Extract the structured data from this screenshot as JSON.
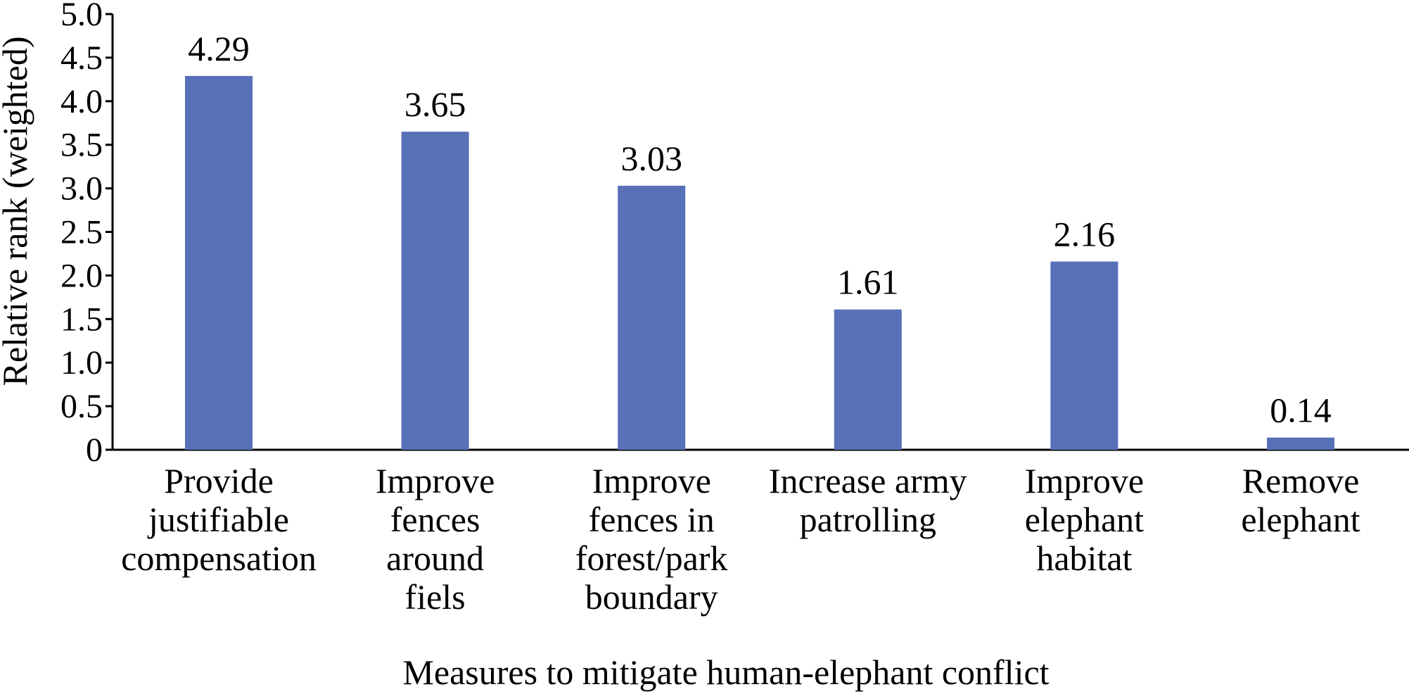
{
  "chart_data": {
    "type": "bar",
    "title": "",
    "xlabel": "Measures to mitigate human-elephant conflict",
    "ylabel": "Relative rank (weighted)",
    "ylim": [
      0,
      5.0
    ],
    "yticks": [
      "0",
      "0.5",
      "1.0",
      "1.5",
      "2.0",
      "2.5",
      "3.0",
      "3.5",
      "4.0",
      "4.5",
      "5.0"
    ],
    "categories": [
      [
        "Provide",
        "justifiable",
        "compensation"
      ],
      [
        "Improve",
        "fences",
        "around",
        "fiels"
      ],
      [
        "Improve",
        "fences in",
        "forest/park",
        "boundary"
      ],
      [
        "Increase army",
        "patrolling"
      ],
      [
        "Improve",
        "elephant",
        "habitat"
      ],
      [
        "Remove",
        "elephant"
      ]
    ],
    "values": [
      4.29,
      3.65,
      3.03,
      1.61,
      2.16,
      0.14
    ],
    "data_labels": [
      "4.29",
      "3.65",
      "3.03",
      "1.61",
      "2.16",
      "0.14"
    ],
    "bar_color": "#5870b8",
    "grid": false,
    "legend": "none"
  }
}
